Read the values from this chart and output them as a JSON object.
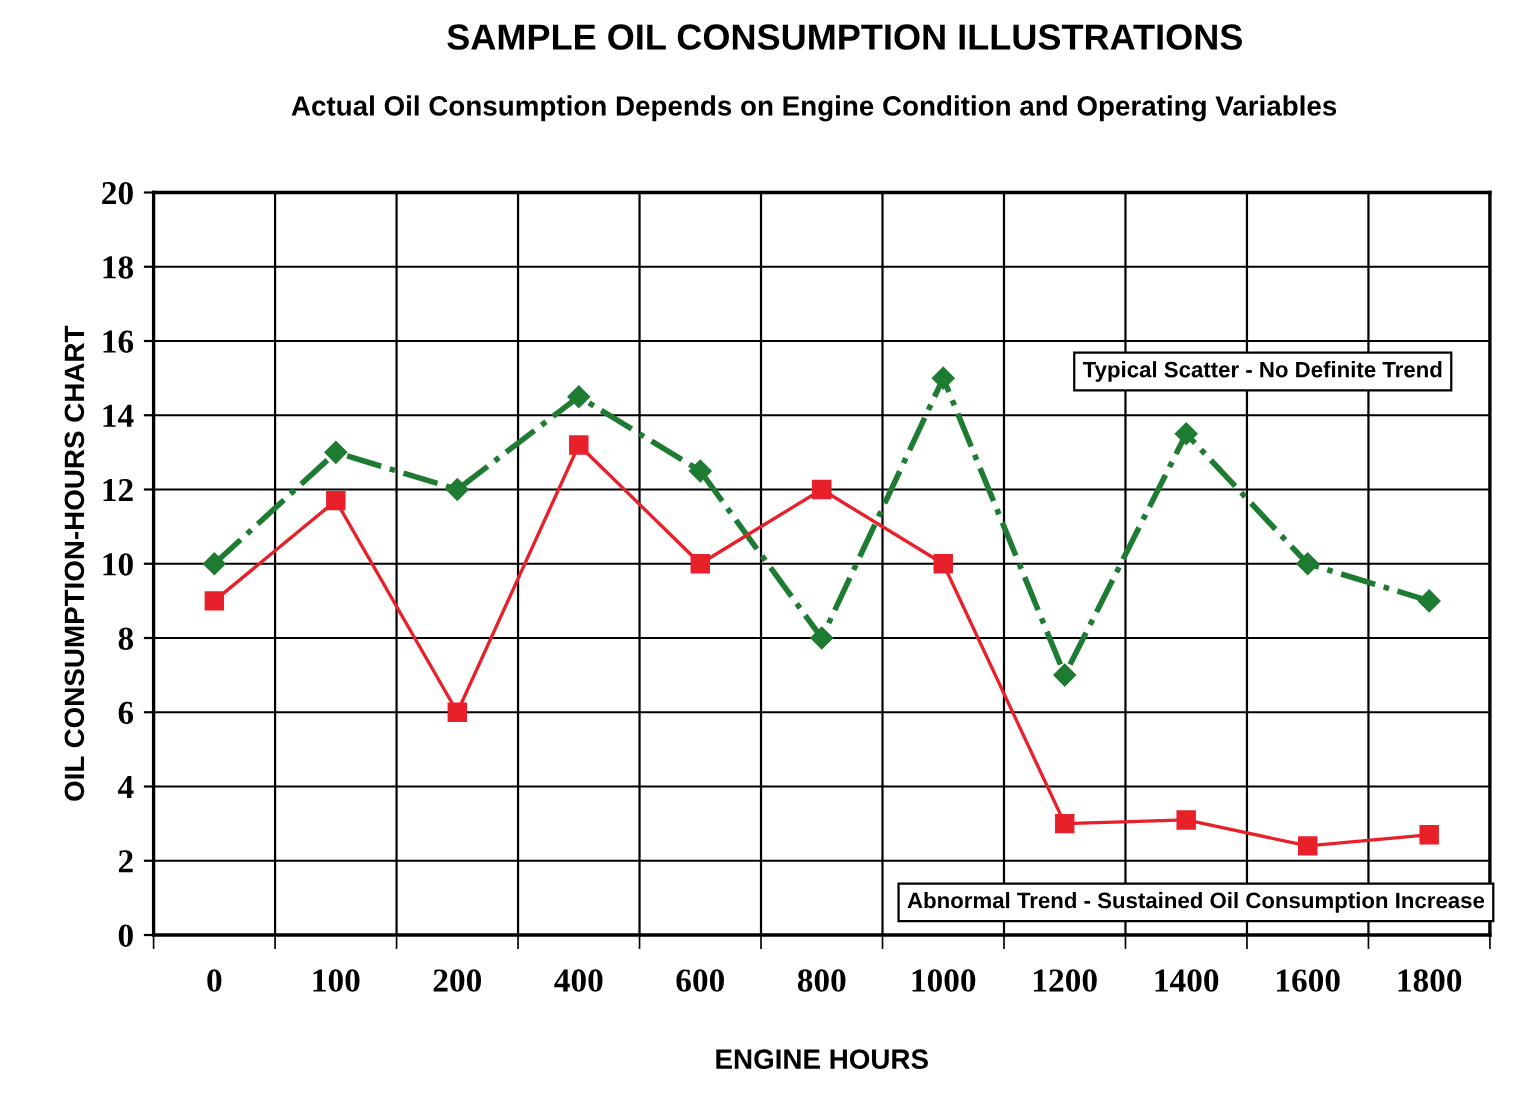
{
  "chart_data": {
    "type": "line",
    "title": "SAMPLE OIL CONSUMPTION ILLUSTRATIONS",
    "subtitle": "Actual Oil Consumption Depends on Engine Condition and Operating Variables",
    "xlabel": "ENGINE HOURS",
    "ylabel": "OIL CONSUMPTION-HOURS CHART",
    "categories": [
      "0",
      "100",
      "200",
      "400",
      "600",
      "800",
      "1000",
      "1200",
      "1400",
      "1600",
      "1800"
    ],
    "series": [
      {
        "color": "#1e7b32",
        "marker": "diamond",
        "line_style": "dashdot",
        "values": [
          10,
          13,
          12,
          14.5,
          12.5,
          8,
          15,
          7,
          13.5,
          10,
          9
        ]
      },
      {
        "color": "#e8202a",
        "marker": "square",
        "line_style": "solid",
        "values": [
          9,
          11.7,
          6,
          13.2,
          10,
          12,
          10,
          3,
          3.1,
          2.4,
          2.7
        ]
      }
    ],
    "annotations": [
      "Typical Scatter - No Definite Trend",
      "Abnormal Trend - Sustained Oil Consumption Increase"
    ],
    "ylim": [
      0,
      20
    ],
    "yticks": [
      0,
      2,
      4,
      6,
      8,
      10,
      12,
      14,
      16,
      18,
      20
    ],
    "grid": true,
    "legend": false
  }
}
